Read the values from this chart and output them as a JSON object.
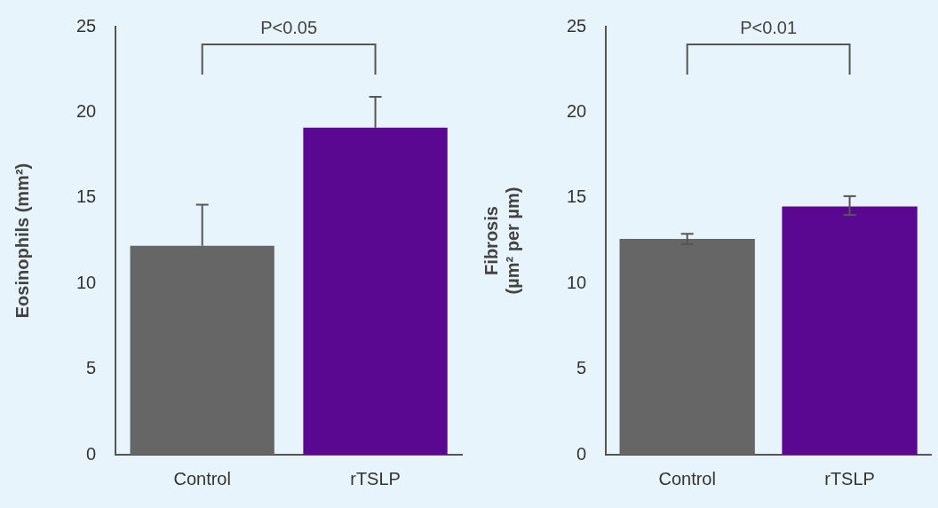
{
  "chart_data": [
    {
      "type": "bar",
      "ylabel": "Eosinophils (mm²)",
      "categories": [
        "Control",
        "rTSLP"
      ],
      "values": [
        12.2,
        19.1
      ],
      "colors": [
        "#666666",
        "#5a0892"
      ],
      "errors": [
        [
          12.2,
          14.6
        ],
        [
          19.1,
          20.9
        ]
      ],
      "ylim": [
        0,
        25
      ],
      "yticks": [
        0,
        5,
        10,
        15,
        20,
        25
      ],
      "grid": false,
      "legend": false,
      "annotations": [
        "P<0.05"
      ]
    },
    {
      "type": "bar",
      "ylabel": "Fibrosis\n(µm² per µm)",
      "categories": [
        "Control",
        "rTSLP"
      ],
      "values": [
        12.6,
        14.5
      ],
      "colors": [
        "#666666",
        "#5a0892"
      ],
      "errors": [
        [
          12.3,
          12.9
        ],
        [
          14.0,
          15.1
        ]
      ],
      "ylim": [
        0,
        25
      ],
      "yticks": [
        0,
        5,
        10,
        15,
        20,
        25
      ],
      "grid": false,
      "legend": false,
      "annotations": [
        "P<0.01"
      ]
    }
  ]
}
